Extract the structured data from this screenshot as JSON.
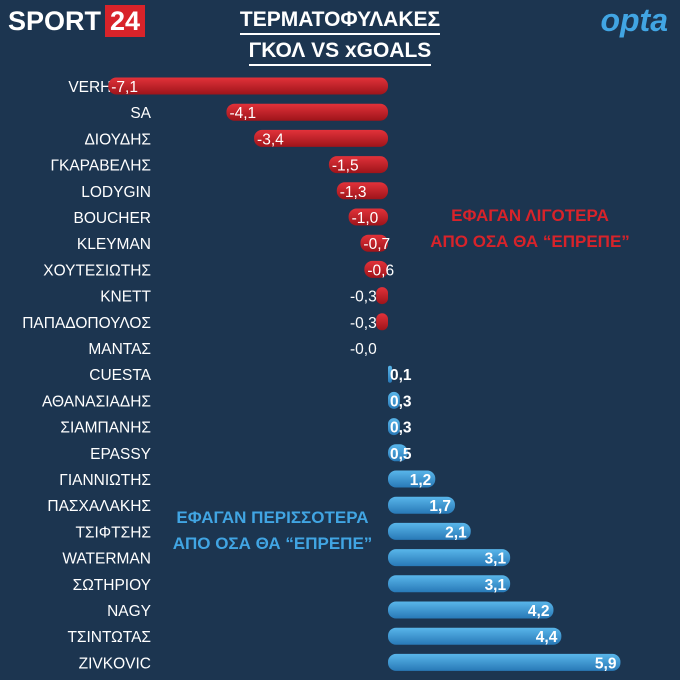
{
  "brand": {
    "sport": "SPORT",
    "number": "24"
  },
  "title_line1": "ΤΕΡΜΑΤΟΦΥΛΑΚΕΣ",
  "title_line2": "ΓΚΟΛ VS xGOALS",
  "opta_logo": "opta",
  "annotations": {
    "negative_line1": "ΕΦΑΓΑΝ ΛΙΓΟΤΕΡΑ",
    "negative_line2": "ΑΠΟ ΟΣΑ ΘΑ “ΕΠΡΕΠΕ”",
    "positive_line1": "ΕΦΑΓΑΝ ΠΕΡΙΣΣΟΤΕΡΑ",
    "positive_line2": "ΑΠΟ ΟΣΑ ΘΑ “ΕΠΡΕΠΕ”"
  },
  "colors": {
    "background": "#1c3550",
    "negative_bar": "#c91d24",
    "positive_bar": "#3c9fd9",
    "brand_red": "#d8232a",
    "opta_blue": "#41a5e3"
  },
  "chart_data": {
    "type": "bar",
    "orientation": "horizontal",
    "categories": [
      "VERHULST",
      "SA",
      "ΔΙΟΥΔΗΣ",
      "ΓΚΑΡΑΒΕΛΗΣ",
      "LODYGIN",
      "BOUCHER",
      "KLEYMAN",
      "ΧΟΥΤΕΣΙΩΤΗΣ",
      "KNETT",
      "ΠΑΠΑΔΟΠΟΥΛΟΣ",
      "ΜΑΝΤΑΣ",
      "CUESTA",
      "ΑΘΑΝΑΣΙΑΔΗΣ",
      "ΣΙΑΜΠΑΝΗΣ",
      "EPASSY",
      "ΓΙΑΝΝΙΩΤΗΣ",
      "ΠΑΣΧΑΛΑΚΗΣ",
      "ΤΣΙΦΤΣΗΣ",
      "WATERMAN",
      "ΣΩΤΗΡΙΟΥ",
      "NAGY",
      "ΤΣΙΝΤΩΤΑΣ",
      "ZIVKOVIC"
    ],
    "values": [
      -7.1,
      -4.1,
      -3.4,
      -1.5,
      -1.3,
      -1.0,
      -0.7,
      -0.6,
      -0.3,
      -0.3,
      -0.0,
      0.1,
      0.3,
      0.3,
      0.5,
      1.2,
      1.7,
      2.1,
      3.1,
      3.1,
      4.2,
      4.4,
      5.9
    ],
    "value_labels": [
      "-7,1",
      "-4,1",
      "-3,4",
      "-1,5",
      "-1,3",
      "-1,0",
      "-0,7",
      "-0,6",
      "-0,3",
      "-0,3",
      "-0,0",
      "0,1",
      "0,3",
      "0,3",
      "0,5",
      "1,2",
      "1,7",
      "2,1",
      "3,1",
      "3,1",
      "4,2",
      "4,4",
      "5,9"
    ],
    "title": "ΤΕΡΜΑΤΟΦΥΛΑΚΕΣ ΓΚΟΛ VS xGOALS",
    "xlabel": "",
    "ylabel": "",
    "xlim": [
      -7.2,
      5.95
    ],
    "grid": false,
    "legend": "none"
  }
}
